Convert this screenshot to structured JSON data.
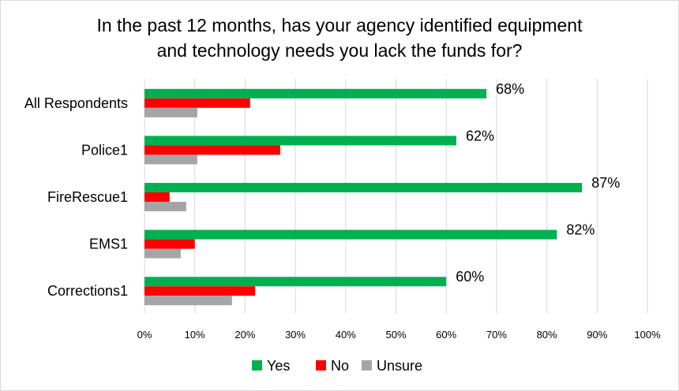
{
  "chart_data": {
    "type": "bar",
    "orientation": "horizontal",
    "title_lines": [
      "In the past 12 months, has your agency identified equipment",
      "and technology needs you lack the funds for?"
    ],
    "categories": [
      "All Respondents",
      "Police1",
      "FireRescue1",
      "EMS1",
      "Corrections1"
    ],
    "series": [
      {
        "name": "Yes",
        "color": "#00b050",
        "values": [
          68,
          62,
          87,
          82,
          60
        ]
      },
      {
        "name": "No",
        "color": "#ff0000",
        "values": [
          21,
          27,
          5,
          10,
          22
        ]
      },
      {
        "name": "Unsure",
        "color": "#a5a5a5",
        "values": [
          10.5,
          10.5,
          8.3,
          7.2,
          17.4
        ]
      }
    ],
    "data_labels": [
      "68%",
      "62%",
      "87%",
      "82%",
      "60%"
    ],
    "xlim": [
      0,
      100
    ],
    "x_ticks": [
      "0%",
      "10%",
      "20%",
      "30%",
      "40%",
      "50%",
      "60%",
      "70%",
      "80%",
      "90%",
      "100%"
    ],
    "grid": "vertical",
    "legend": "bottom"
  }
}
